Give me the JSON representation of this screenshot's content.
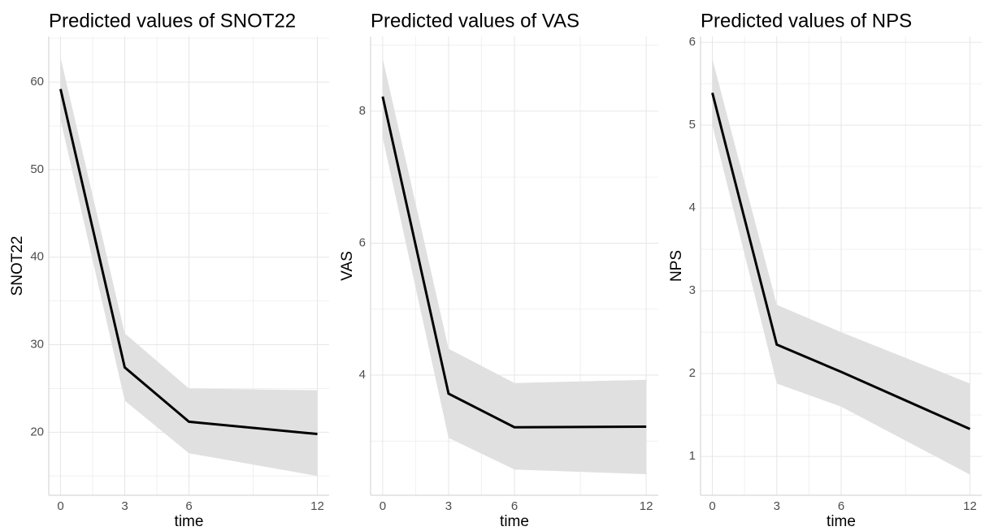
{
  "chart_data": [
    {
      "type": "line",
      "title": "Predicted values of SNOT22",
      "xlabel": "time",
      "ylabel": "SNOT22",
      "x": [
        0,
        3,
        6,
        12
      ],
      "values": [
        59.2,
        27.4,
        21.2,
        19.8
      ],
      "lower": [
        55.7,
        23.6,
        17.6,
        15.0
      ],
      "upper": [
        62.8,
        31.3,
        25.0,
        24.8
      ],
      "color": "#000000",
      "band_color": "#e0e0e0",
      "xlim": [
        -0.55,
        12.55
      ],
      "xticks": [
        0,
        3,
        6,
        12
      ],
      "ylim": [
        12.8,
        65.2
      ],
      "yticks": [
        20,
        30,
        40,
        50,
        60
      ],
      "grid": true
    },
    {
      "type": "line",
      "title": "Predicted values of VAS",
      "xlabel": "time",
      "ylabel": "VAS",
      "x": [
        0,
        3,
        6,
        12
      ],
      "values": [
        8.22,
        3.72,
        3.21,
        3.22
      ],
      "lower": [
        7.6,
        3.05,
        2.57,
        2.5
      ],
      "upper": [
        8.8,
        4.4,
        3.88,
        3.93
      ],
      "color": "#000000",
      "band_color": "#e0e0e0",
      "xlim": [
        -0.55,
        12.55
      ],
      "xticks": [
        0,
        3,
        6,
        12
      ],
      "ylim": [
        2.18,
        9.13
      ],
      "yticks": [
        4,
        6,
        8
      ],
      "grid": true
    },
    {
      "type": "line",
      "title": "Predicted values of NPS",
      "xlabel": "time",
      "ylabel": "NPS",
      "x": [
        0,
        3,
        6,
        12
      ],
      "values": [
        5.39,
        2.35,
        2.02,
        1.33
      ],
      "lower": [
        5.0,
        1.88,
        1.6,
        0.78
      ],
      "upper": [
        5.8,
        2.83,
        2.5,
        1.88
      ],
      "color": "#000000",
      "band_color": "#e0e0e0",
      "xlim": [
        -0.55,
        12.55
      ],
      "xticks": [
        0,
        3,
        6,
        12
      ],
      "ylim": [
        0.53,
        6.07
      ],
      "yticks": [
        1,
        2,
        3,
        4,
        5,
        6
      ],
      "grid": true
    }
  ]
}
